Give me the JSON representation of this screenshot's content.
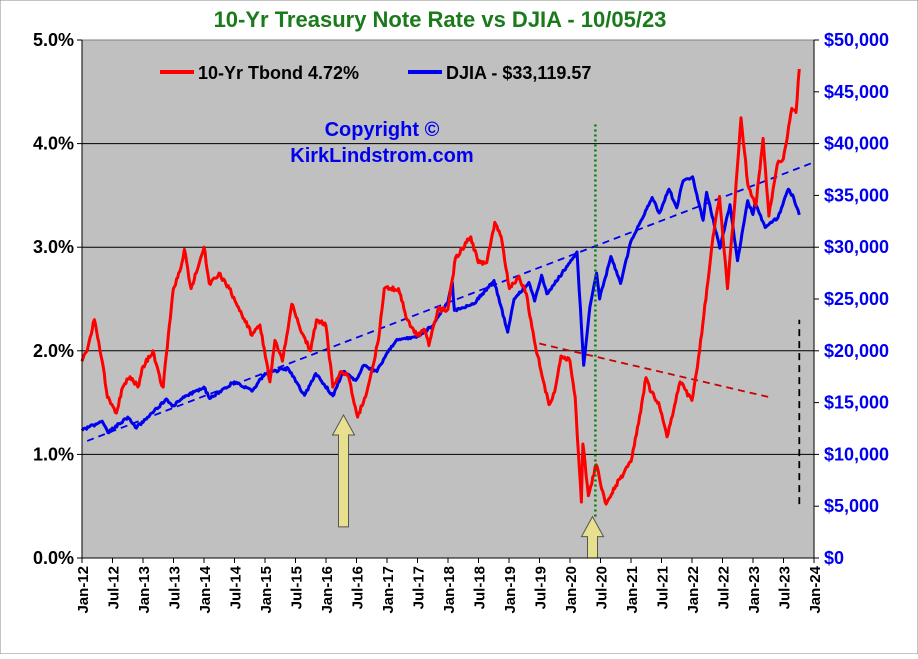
{
  "chart_data": {
    "type": "line",
    "title": "10-Yr Treasury Note Rate vs DJIA - 10/05/23",
    "x_ticks": [
      "Jan-12",
      "Jul-12",
      "Jan-13",
      "Jul-13",
      "Jan-14",
      "Jul-14",
      "Jan-15",
      "Jul-15",
      "Jan-16",
      "Jul-16",
      "Jan-17",
      "Jul-17",
      "Jan-18",
      "Jul-18",
      "Jan-19",
      "Jul-19",
      "Jan-20",
      "Jul-20",
      "Jan-21",
      "Jul-21",
      "Jan-22",
      "Jul-22",
      "Jan-23",
      "Jul-23",
      "Jan-24"
    ],
    "y_left_ticks": [
      "0.0%",
      "1.0%",
      "2.0%",
      "3.0%",
      "4.0%",
      "5.0%"
    ],
    "y_right_ticks": [
      "$0",
      "$5,000",
      "$10,000",
      "$15,000",
      "$20,000",
      "$25,000",
      "$30,000",
      "$35,000",
      "$40,000",
      "$45,000",
      "$50,000"
    ],
    "y_left_range": [
      0,
      5
    ],
    "y_right_range": [
      0,
      50000
    ],
    "x_range": [
      "2012-01-01",
      "2024-01-01"
    ],
    "grid": "horizontal",
    "legend_position": "top-left",
    "annotation": "Copyright ©\nKirkLindstrom.com",
    "series": [
      {
        "name": "10-Yr Tbond 4.72%",
        "axis": "left",
        "color": "#ff0000",
        "points": [
          [
            "2012-01-01",
            1.9
          ],
          [
            "2012-02-01",
            2.0
          ],
          [
            "2012-03-15",
            2.3
          ],
          [
            "2012-05-01",
            1.9
          ],
          [
            "2012-06-01",
            1.55
          ],
          [
            "2012-07-25",
            1.4
          ],
          [
            "2012-09-01",
            1.65
          ],
          [
            "2012-10-15",
            1.75
          ],
          [
            "2012-12-01",
            1.65
          ],
          [
            "2013-01-01",
            1.85
          ],
          [
            "2013-03-01",
            2.0
          ],
          [
            "2013-04-15",
            1.7
          ],
          [
            "2013-05-01",
            1.65
          ],
          [
            "2013-06-01",
            2.15
          ],
          [
            "2013-07-01",
            2.6
          ],
          [
            "2013-08-15",
            2.8
          ],
          [
            "2013-09-05",
            2.98
          ],
          [
            "2013-10-15",
            2.6
          ],
          [
            "2013-11-15",
            2.75
          ],
          [
            "2014-01-01",
            3.0
          ],
          [
            "2014-02-01",
            2.65
          ],
          [
            "2014-04-01",
            2.75
          ],
          [
            "2014-06-01",
            2.6
          ],
          [
            "2014-08-15",
            2.35
          ],
          [
            "2014-10-15",
            2.15
          ],
          [
            "2014-12-01",
            2.25
          ],
          [
            "2015-01-30",
            1.7
          ],
          [
            "2015-03-01",
            2.1
          ],
          [
            "2015-04-15",
            1.9
          ],
          [
            "2015-06-10",
            2.45
          ],
          [
            "2015-08-01",
            2.2
          ],
          [
            "2015-10-01",
            2.0
          ],
          [
            "2015-11-05",
            2.3
          ],
          [
            "2015-12-31",
            2.25
          ],
          [
            "2016-02-11",
            1.65
          ],
          [
            "2016-04-01",
            1.8
          ],
          [
            "2016-05-15",
            1.75
          ],
          [
            "2016-07-08",
            1.36
          ],
          [
            "2016-09-01",
            1.6
          ],
          [
            "2016-11-10",
            2.1
          ],
          [
            "2016-12-15",
            2.6
          ],
          [
            "2017-03-10",
            2.6
          ],
          [
            "2017-05-01",
            2.3
          ],
          [
            "2017-06-26",
            2.15
          ],
          [
            "2017-08-15",
            2.2
          ],
          [
            "2017-09-08",
            2.05
          ],
          [
            "2017-11-01",
            2.4
          ],
          [
            "2017-12-31",
            2.4
          ],
          [
            "2018-02-15",
            2.9
          ],
          [
            "2018-05-17",
            3.1
          ],
          [
            "2018-07-01",
            2.85
          ],
          [
            "2018-08-20",
            2.85
          ],
          [
            "2018-10-08",
            3.24
          ],
          [
            "2018-11-15",
            3.1
          ],
          [
            "2019-01-03",
            2.6
          ],
          [
            "2019-03-01",
            2.72
          ],
          [
            "2019-04-15",
            2.55
          ],
          [
            "2019-06-01",
            2.1
          ],
          [
            "2019-08-28",
            1.48
          ],
          [
            "2019-10-01",
            1.6
          ],
          [
            "2019-11-08",
            1.95
          ],
          [
            "2020-01-01",
            1.9
          ],
          [
            "2020-02-01",
            1.55
          ],
          [
            "2020-03-09",
            0.54
          ],
          [
            "2020-03-18",
            1.1
          ],
          [
            "2020-04-20",
            0.6
          ],
          [
            "2020-06-05",
            0.9
          ],
          [
            "2020-08-04",
            0.52
          ],
          [
            "2020-10-01",
            0.7
          ],
          [
            "2020-12-31",
            0.93
          ],
          [
            "2021-02-15",
            1.3
          ],
          [
            "2021-03-31",
            1.74
          ],
          [
            "2021-05-01",
            1.6
          ],
          [
            "2021-06-15",
            1.5
          ],
          [
            "2021-08-04",
            1.17
          ],
          [
            "2021-10-21",
            1.7
          ],
          [
            "2021-12-31",
            1.52
          ],
          [
            "2022-02-15",
            2.0
          ],
          [
            "2022-03-31",
            2.6
          ],
          [
            "2022-05-06",
            3.1
          ],
          [
            "2022-06-14",
            3.49
          ],
          [
            "2022-08-01",
            2.6
          ],
          [
            "2022-09-15",
            3.45
          ],
          [
            "2022-10-21",
            4.25
          ],
          [
            "2022-12-01",
            3.6
          ],
          [
            "2023-01-18",
            3.4
          ],
          [
            "2023-03-02",
            4.05
          ],
          [
            "2023-04-06",
            3.3
          ],
          [
            "2023-05-26",
            3.8
          ],
          [
            "2023-07-01",
            3.85
          ],
          [
            "2023-08-21",
            4.34
          ],
          [
            "2023-09-15",
            4.3
          ],
          [
            "2023-10-05",
            4.72
          ]
        ]
      },
      {
        "name": "DJIA - $33,119.57",
        "axis": "right",
        "color": "#0000ee",
        "points": [
          [
            "2012-01-01",
            12300
          ],
          [
            "2012-05-01",
            13200
          ],
          [
            "2012-06-04",
            12100
          ],
          [
            "2012-10-01",
            13600
          ],
          [
            "2012-11-15",
            12600
          ],
          [
            "2013-01-01",
            13100
          ],
          [
            "2013-05-20",
            15350
          ],
          [
            "2013-06-24",
            14650
          ],
          [
            "2013-09-18",
            15650
          ],
          [
            "2013-12-31",
            16500
          ],
          [
            "2014-02-03",
            15400
          ],
          [
            "2014-07-01",
            17000
          ],
          [
            "2014-10-15",
            16100
          ],
          [
            "2014-12-31",
            17800
          ],
          [
            "2015-05-19",
            18300
          ],
          [
            "2015-08-25",
            15700
          ],
          [
            "2015-11-01",
            17800
          ],
          [
            "2016-02-11",
            15660
          ],
          [
            "2016-04-15",
            18000
          ],
          [
            "2016-06-27",
            17140
          ],
          [
            "2016-08-15",
            18600
          ],
          [
            "2016-11-01",
            18000
          ],
          [
            "2016-12-31",
            19800
          ],
          [
            "2017-03-01",
            21100
          ],
          [
            "2017-06-30",
            21400
          ],
          [
            "2017-09-30",
            22400
          ],
          [
            "2017-12-31",
            24700
          ],
          [
            "2018-01-26",
            26600
          ],
          [
            "2018-02-08",
            23900
          ],
          [
            "2018-06-01",
            24500
          ],
          [
            "2018-10-03",
            26800
          ],
          [
            "2018-12-24",
            21800
          ],
          [
            "2019-01-31",
            25000
          ],
          [
            "2019-04-30",
            26600
          ],
          [
            "2019-06-03",
            24800
          ],
          [
            "2019-07-15",
            27300
          ],
          [
            "2019-08-15",
            25500
          ],
          [
            "2019-12-31",
            28500
          ],
          [
            "2020-02-12",
            29550
          ],
          [
            "2020-03-23",
            18600
          ],
          [
            "2020-04-30",
            24300
          ],
          [
            "2020-06-08",
            27500
          ],
          [
            "2020-06-26",
            25000
          ],
          [
            "2020-09-02",
            29100
          ],
          [
            "2020-10-30",
            26500
          ],
          [
            "2020-12-31",
            30600
          ],
          [
            "2021-05-07",
            34800
          ],
          [
            "2021-06-18",
            33300
          ],
          [
            "2021-08-16",
            35600
          ],
          [
            "2021-10-01",
            33800
          ],
          [
            "2021-11-08",
            36400
          ],
          [
            "2022-01-04",
            36800
          ],
          [
            "2022-03-08",
            32600
          ],
          [
            "2022-03-29",
            35300
          ],
          [
            "2022-06-16",
            29900
          ],
          [
            "2022-08-16",
            34100
          ],
          [
            "2022-09-30",
            28700
          ],
          [
            "2022-11-30",
            34500
          ],
          [
            "2022-12-31",
            33150
          ],
          [
            "2023-01-13",
            34300
          ],
          [
            "2023-03-15",
            31900
          ],
          [
            "2023-05-31",
            32900
          ],
          [
            "2023-07-31",
            35600
          ],
          [
            "2023-09-01",
            34800
          ],
          [
            "2023-10-05",
            33120
          ]
        ]
      }
    ],
    "overlays": [
      {
        "name": "djia-trend",
        "style": "dashed",
        "color": "#0000ee",
        "axis": "right",
        "from": [
          "2012-02-01",
          11300
        ],
        "to": [
          "2024-01-01",
          38200
        ]
      },
      {
        "name": "rate-trend",
        "style": "dashed",
        "color": "#cc0000",
        "axis": "left",
        "from": [
          "2019-07-01",
          2.07
        ],
        "to": [
          "2023-04-15",
          1.55
        ]
      },
      {
        "name": "covid-low-marker",
        "style": "dotted",
        "color": "#008000",
        "axis": "left",
        "from": [
          "2020-06-01",
          0.4
        ],
        "to": [
          "2020-06-01",
          4.2
        ]
      },
      {
        "name": "current-marker",
        "style": "dashed",
        "color": "#000000",
        "axis": "left",
        "from": [
          "2023-10-05",
          0.52
        ],
        "to": [
          "2023-10-05",
          2.3
        ]
      }
    ],
    "arrows": [
      {
        "name": "arrow-2016",
        "x": "2016-04-15",
        "top": 1.38,
        "bottom": 0.3
      },
      {
        "name": "arrow-2020",
        "x": "2020-05-15",
        "top": 0.4,
        "bottom": 0.0
      }
    ]
  }
}
